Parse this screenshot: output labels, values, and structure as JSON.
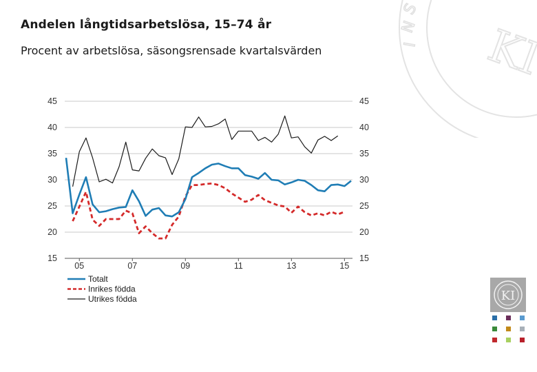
{
  "header": {
    "title": "Andelen långtidsarbetslösa, 15–74 år",
    "subtitle": "Procent av arbetslösa, säsongsrensade kvartalsvärden"
  },
  "branding": {
    "watermark_letters": [
      "I",
      "N",
      "S",
      "T",
      "I",
      "T",
      "U",
      "T",
      "E",
      "T"
    ],
    "watermark_monogram": "KI",
    "seal_monogram": "KI",
    "logo_colors": [
      "#2b6fa8",
      "#6b2e5a",
      "#5a9bd0",
      "#3a8a3a",
      "#c28a1a",
      "#a8b0b8",
      "#c0282c",
      "#a8d060",
      "#b8202a"
    ]
  },
  "chart_data": {
    "type": "line",
    "title": "Andelen långtidsarbetslösa, 15–74 år",
    "ylabel": "Procent av arbetslösa",
    "ylim": [
      15,
      45
    ],
    "yticks": [
      15,
      20,
      25,
      30,
      35,
      40,
      45
    ],
    "ytick_labels": [
      "15",
      "20",
      "25",
      "30",
      "35",
      "40",
      "45"
    ],
    "x_tick_labels": [
      "05",
      "07",
      "09",
      "11",
      "13",
      "15"
    ],
    "x_tick_index": [
      2,
      10,
      18,
      26,
      34,
      42
    ],
    "grid": true,
    "legend_position": "bottom-left",
    "series": [
      {
        "name": "Totalt",
        "color": "#1f7db5",
        "style": "solid",
        "values": [
          34.2,
          23.6,
          27.2,
          30.5,
          25.3,
          23.8,
          24.0,
          24.4,
          24.7,
          24.8,
          28.0,
          25.9,
          23.1,
          24.3,
          24.6,
          23.2,
          23.0,
          23.8,
          26.3,
          30.5,
          31.3,
          32.2,
          32.9,
          33.1,
          32.6,
          32.2,
          32.2,
          30.9,
          30.6,
          30.2,
          31.3,
          30.0,
          29.9,
          29.1,
          29.5,
          30.0,
          29.8,
          29.0,
          28.0,
          27.8,
          29.0,
          29.1,
          28.8,
          29.8
        ]
      },
      {
        "name": "Inrikes födda",
        "color": "#d42a2a",
        "style": "dashed",
        "values": [
          null,
          22.1,
          24.9,
          27.7,
          22.4,
          21.2,
          22.5,
          22.5,
          22.5,
          24.1,
          23.6,
          19.8,
          21.1,
          19.8,
          18.8,
          18.8,
          21.4,
          23.0,
          26.8,
          29.0,
          29.0,
          29.2,
          29.3,
          29.0,
          28.4,
          27.4,
          26.6,
          25.8,
          26.2,
          27.1,
          26.1,
          25.6,
          25.1,
          24.9,
          23.7,
          24.9,
          23.8,
          23.2,
          23.6,
          23.2,
          23.9,
          23.4,
          23.9,
          null
        ]
      },
      {
        "name": "Utrikes födda",
        "color": "#1a1a1a",
        "style": "solid",
        "values": [
          null,
          28.7,
          35.4,
          38.0,
          34.2,
          29.6,
          30.1,
          29.4,
          32.5,
          37.2,
          31.9,
          31.7,
          34.1,
          35.9,
          34.6,
          34.2,
          31.0,
          34.0,
          40.1,
          40.0,
          42.0,
          40.1,
          40.2,
          40.7,
          41.6,
          37.7,
          39.3,
          39.3,
          39.3,
          37.5,
          38.1,
          37.2,
          38.7,
          42.2,
          38.0,
          38.2,
          36.3,
          35.1,
          37.6,
          38.3,
          37.5,
          38.4,
          null,
          null
        ]
      }
    ]
  }
}
